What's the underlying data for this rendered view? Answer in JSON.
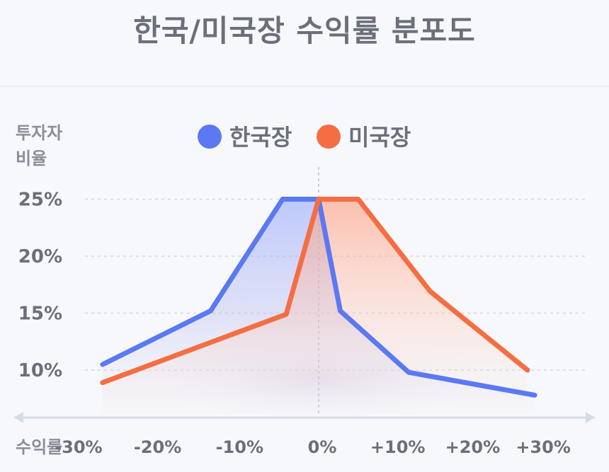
{
  "chart_data": {
    "type": "line",
    "title": "한국/미국장 수익률 분포도",
    "xlabel": "수익률",
    "ylabel": "투자자 비율",
    "x_tick_labels": [
      "-30%",
      "-20%",
      "-10%",
      "0%",
      "+10%",
      "+20%",
      "+30%"
    ],
    "y_tick_labels": [
      "10%",
      "15%",
      "20%",
      "25%"
    ],
    "y_ticks": [
      10,
      15,
      20,
      25
    ],
    "xlim": [
      -30,
      30
    ],
    "ylim": [
      10,
      25
    ],
    "grid": "dashed-horizontal",
    "legend_position": "top-center",
    "series": [
      {
        "name": "한국장",
        "color": "#5b79f3",
        "points": [
          {
            "x": -30,
            "y": 10.5
          },
          {
            "x": -15,
            "y": 15.2
          },
          {
            "x": -5,
            "y": 25
          },
          {
            "x": 0,
            "y": 25
          },
          {
            "x": 3,
            "y": 15.2
          },
          {
            "x": 12.5,
            "y": 9.8
          },
          {
            "x": 30,
            "y": 7.8
          }
        ]
      },
      {
        "name": "미국장",
        "color": "#f56e43",
        "points": [
          {
            "x": -30,
            "y": 8.9
          },
          {
            "x": -4.5,
            "y": 14.9
          },
          {
            "x": 0,
            "y": 25
          },
          {
            "x": 5.5,
            "y": 25
          },
          {
            "x": 15.5,
            "y": 16.9
          },
          {
            "x": 29,
            "y": 10
          }
        ]
      }
    ]
  }
}
